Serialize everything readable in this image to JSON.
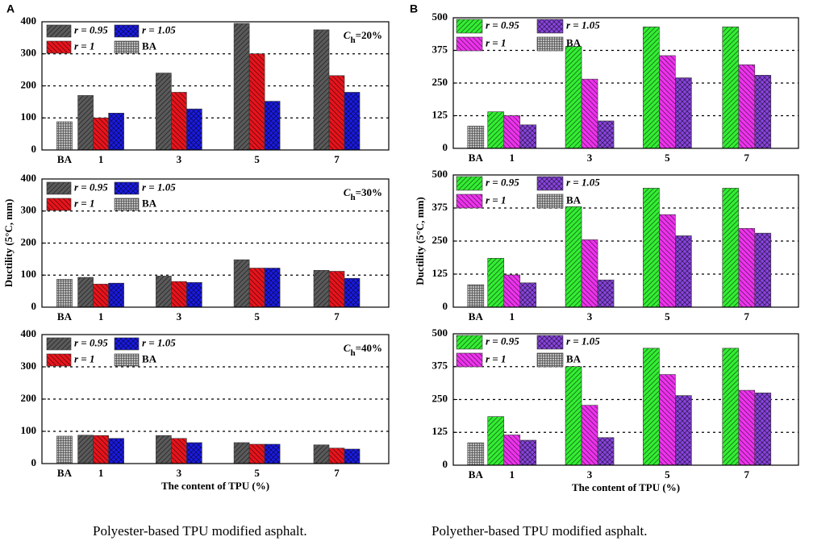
{
  "panels": [
    "A",
    "B"
  ],
  "captions": [
    "Polyester-based TPU modified asphalt.",
    "Polyether-based TPU modified asphalt."
  ],
  "chart_data": [
    {
      "type": "bar",
      "categories": [
        "BA",
        "1",
        "3",
        "5",
        "7"
      ],
      "annotation": [
        "C",
        "h",
        "=20%"
      ],
      "series": [
        {
          "name": "r = 0.95",
          "color": "#5a5a5a",
          "values": [
            null,
            170,
            240,
            395,
            375
          ]
        },
        {
          "name": "r = 1",
          "color": "#e8141c",
          "values": [
            null,
            100,
            180,
            300,
            232
          ]
        },
        {
          "name": "r = 1.05",
          "color": "#1a1ae6",
          "values": [
            null,
            115,
            128,
            152,
            180
          ]
        },
        {
          "name": "BA",
          "color": "#bdbdbd",
          "values": [
            88,
            null,
            null,
            null,
            null
          ]
        }
      ],
      "ylim": [
        0,
        400
      ],
      "yticks": [
        0,
        100,
        200,
        300,
        400
      ],
      "grid": true,
      "legend": "upper left"
    },
    {
      "type": "bar",
      "categories": [
        "BA",
        "1",
        "3",
        "5",
        "7"
      ],
      "annotation": [
        "C",
        "h",
        "=30%"
      ],
      "ylabel": "Ductility (5°C, mm)",
      "series": [
        {
          "name": "r = 0.95",
          "color": "#5a5a5a",
          "values": [
            null,
            93,
            97,
            148,
            115
          ]
        },
        {
          "name": "r = 1",
          "color": "#e8141c",
          "values": [
            null,
            72,
            80,
            122,
            112
          ]
        },
        {
          "name": "r = 1.05",
          "color": "#1a1ae6",
          "values": [
            null,
            75,
            77,
            122,
            90
          ]
        },
        {
          "name": "BA",
          "color": "#bdbdbd",
          "values": [
            87,
            null,
            null,
            null,
            null
          ]
        }
      ],
      "ylim": [
        0,
        400
      ],
      "yticks": [
        0,
        100,
        200,
        300,
        400
      ],
      "grid": true,
      "legend": "upper left"
    },
    {
      "type": "bar",
      "categories": [
        "BA",
        "1",
        "3",
        "5",
        "7"
      ],
      "annotation": [
        "C",
        "h",
        "=40%"
      ],
      "xlabel": "The content of TPU (%)",
      "series": [
        {
          "name": "r = 0.95",
          "color": "#5a5a5a",
          "values": [
            null,
            88,
            87,
            65,
            58
          ]
        },
        {
          "name": "r = 1",
          "color": "#e8141c",
          "values": [
            null,
            87,
            78,
            60,
            48
          ]
        },
        {
          "name": "r = 1.05",
          "color": "#1a1ae6",
          "values": [
            null,
            78,
            65,
            60,
            45
          ]
        },
        {
          "name": "BA",
          "color": "#bdbdbd",
          "values": [
            85,
            null,
            null,
            null,
            null
          ]
        }
      ],
      "ylim": [
        0,
        400
      ],
      "yticks": [
        0,
        100,
        200,
        300,
        400
      ],
      "grid": true,
      "legend": "upper left"
    },
    {
      "type": "bar",
      "categories": [
        "BA",
        "1",
        "3",
        "5",
        "7"
      ],
      "series": [
        {
          "name": "r = 0.95",
          "color": "#33ee33",
          "values": [
            null,
            140,
            390,
            465,
            465
          ]
        },
        {
          "name": "r = 1",
          "color": "#ee33ee",
          "values": [
            null,
            125,
            265,
            355,
            320
          ]
        },
        {
          "name": "r = 1.05",
          "color": "#8844dd",
          "values": [
            null,
            90,
            105,
            270,
            280
          ]
        },
        {
          "name": "BA",
          "color": "#bdbdbd",
          "values": [
            85,
            null,
            null,
            null,
            null
          ]
        }
      ],
      "ylim": [
        0,
        500
      ],
      "yticks": [
        0,
        125,
        250,
        375,
        500
      ],
      "grid": true,
      "legend": "upper left"
    },
    {
      "type": "bar",
      "categories": [
        "BA",
        "1",
        "3",
        "5",
        "7"
      ],
      "ylabel": "Ductility (5°C, mm)",
      "series": [
        {
          "name": "r = 0.95",
          "color": "#33ee33",
          "values": [
            null,
            185,
            380,
            450,
            450
          ]
        },
        {
          "name": "r = 1",
          "color": "#ee33ee",
          "values": [
            null,
            122,
            255,
            350,
            298
          ]
        },
        {
          "name": "r = 1.05",
          "color": "#8844dd",
          "values": [
            null,
            92,
            103,
            270,
            280
          ]
        },
        {
          "name": "BA",
          "color": "#bdbdbd",
          "values": [
            85,
            null,
            null,
            null,
            null
          ]
        }
      ],
      "ylim": [
        0,
        500
      ],
      "yticks": [
        0,
        125,
        250,
        375,
        500
      ],
      "grid": true,
      "legend": "upper left"
    },
    {
      "type": "bar",
      "categories": [
        "BA",
        "1",
        "3",
        "5",
        "7"
      ],
      "xlabel": "The content of TPU (%)",
      "series": [
        {
          "name": "r = 0.95",
          "color": "#33ee33",
          "values": [
            null,
            185,
            375,
            445,
            445
          ]
        },
        {
          "name": "r = 1",
          "color": "#ee33ee",
          "values": [
            null,
            115,
            228,
            345,
            285
          ]
        },
        {
          "name": "r = 1.05",
          "color": "#8844dd",
          "values": [
            null,
            95,
            105,
            265,
            275
          ]
        },
        {
          "name": "BA",
          "color": "#bdbdbd",
          "values": [
            85,
            null,
            null,
            null,
            null
          ]
        }
      ],
      "ylim": [
        0,
        500
      ],
      "yticks": [
        0,
        125,
        250,
        375,
        500
      ],
      "grid": true,
      "legend": "upper left"
    }
  ]
}
